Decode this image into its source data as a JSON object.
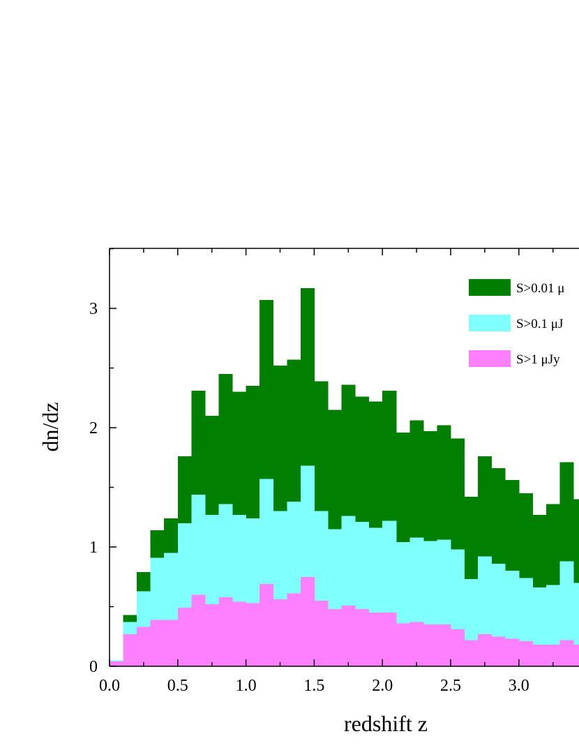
{
  "chart_data": {
    "type": "bar",
    "stacked": false,
    "bin_width": 0.1,
    "x_bin_starts": [
      0.0,
      0.1,
      0.2,
      0.3,
      0.4,
      0.5,
      0.6,
      0.7,
      0.8,
      0.9,
      1.0,
      1.1,
      1.2,
      1.3,
      1.4,
      1.5,
      1.6,
      1.7,
      1.8,
      1.9,
      2.0,
      2.1,
      2.2,
      2.3,
      2.4,
      2.5,
      2.6,
      2.7,
      2.8,
      2.9,
      3.0,
      3.1,
      3.2,
      3.3,
      3.4
    ],
    "series": [
      {
        "name": "S>0.01 μ",
        "color": "#007f00",
        "values": [
          0.05,
          0.43,
          0.79,
          1.14,
          1.24,
          1.76,
          2.31,
          2.1,
          2.45,
          2.3,
          2.35,
          3.07,
          2.52,
          2.57,
          3.17,
          2.39,
          2.15,
          2.36,
          2.26,
          2.22,
          2.31,
          1.96,
          2.06,
          1.97,
          2.02,
          1.91,
          1.42,
          1.76,
          1.66,
          1.56,
          1.45,
          1.27,
          1.36,
          1.71,
          1.4
        ]
      },
      {
        "name": "S>0.1 μJ",
        "color": "#80ffff",
        "values": [
          0.05,
          0.37,
          0.63,
          0.91,
          0.95,
          1.2,
          1.44,
          1.27,
          1.36,
          1.27,
          1.24,
          1.57,
          1.3,
          1.38,
          1.68,
          1.3,
          1.15,
          1.26,
          1.21,
          1.16,
          1.22,
          1.04,
          1.08,
          1.05,
          1.06,
          0.98,
          0.73,
          0.92,
          0.86,
          0.8,
          0.74,
          0.66,
          0.68,
          0.88,
          0.7
        ]
      },
      {
        "name": "S>1 μJy",
        "color": "#ff80ff",
        "values": [
          0.04,
          0.27,
          0.33,
          0.39,
          0.39,
          0.49,
          0.6,
          0.52,
          0.58,
          0.54,
          0.53,
          0.69,
          0.56,
          0.61,
          0.75,
          0.55,
          0.48,
          0.51,
          0.48,
          0.45,
          0.45,
          0.36,
          0.37,
          0.35,
          0.35,
          0.31,
          0.22,
          0.27,
          0.25,
          0.23,
          0.21,
          0.18,
          0.18,
          0.22,
          0.18
        ]
      }
    ],
    "xlabel": "redshift z",
    "ylabel": "dn/dz",
    "xlim": [
      0.0,
      3.42
    ],
    "ylim": [
      0,
      3.5
    ],
    "x_ticks": [
      "0.0",
      "0.5",
      "1.0",
      "1.5",
      "2.0",
      "2.5",
      "3.0",
      "3"
    ],
    "y_ticks": [
      "0",
      "1",
      "2",
      "3"
    ],
    "legend_position": "top-right",
    "grid": false
  }
}
